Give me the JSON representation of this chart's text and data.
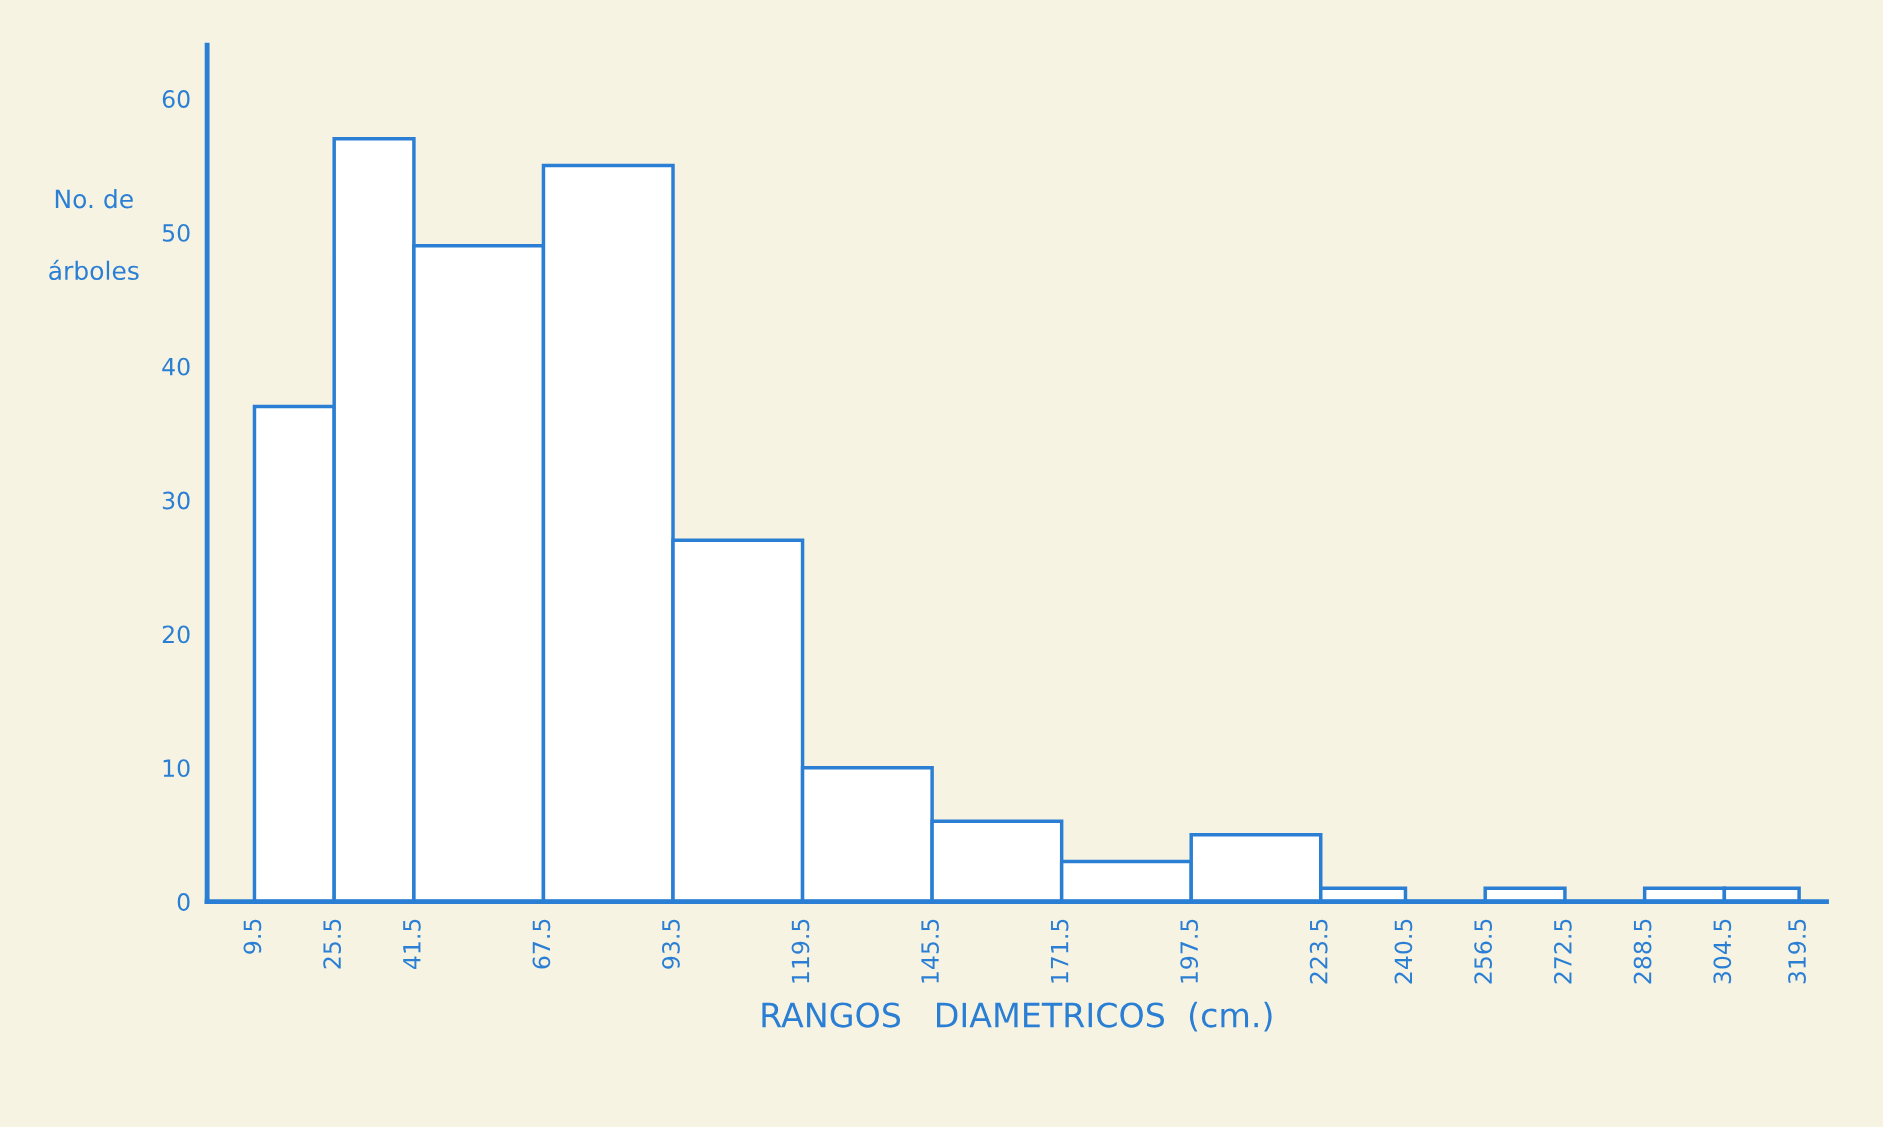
{
  "chart_data": {
    "type": "histogram",
    "xlabel": "RANGOS   DIAMETRICOS  (cm.)",
    "ylabel": "No. de\nárboles",
    "bins": [
      9.5,
      25.5,
      41.5,
      67.5,
      93.5,
      119.5,
      145.5,
      171.5,
      197.5,
      223.5,
      240.5,
      256.5,
      272.5,
      288.5,
      304.5,
      319.5
    ],
    "values": [
      37,
      57,
      49,
      55,
      27,
      10,
      6,
      3,
      5,
      1,
      0,
      1,
      0,
      1,
      1
    ],
    "color": "#2a7fd4",
    "xlim": [
      0,
      325
    ],
    "xticks": [
      9.5,
      25.5,
      41.5,
      67.5,
      93.5,
      119.5,
      145.5,
      171.5,
      197.5,
      223.5,
      240.5,
      256.5,
      272.5,
      288.5,
      304.5,
      319.5
    ],
    "ylim": [
      0,
      64
    ],
    "yticks": [
      0,
      10,
      20,
      30,
      40,
      50,
      60
    ],
    "grid": false
  }
}
